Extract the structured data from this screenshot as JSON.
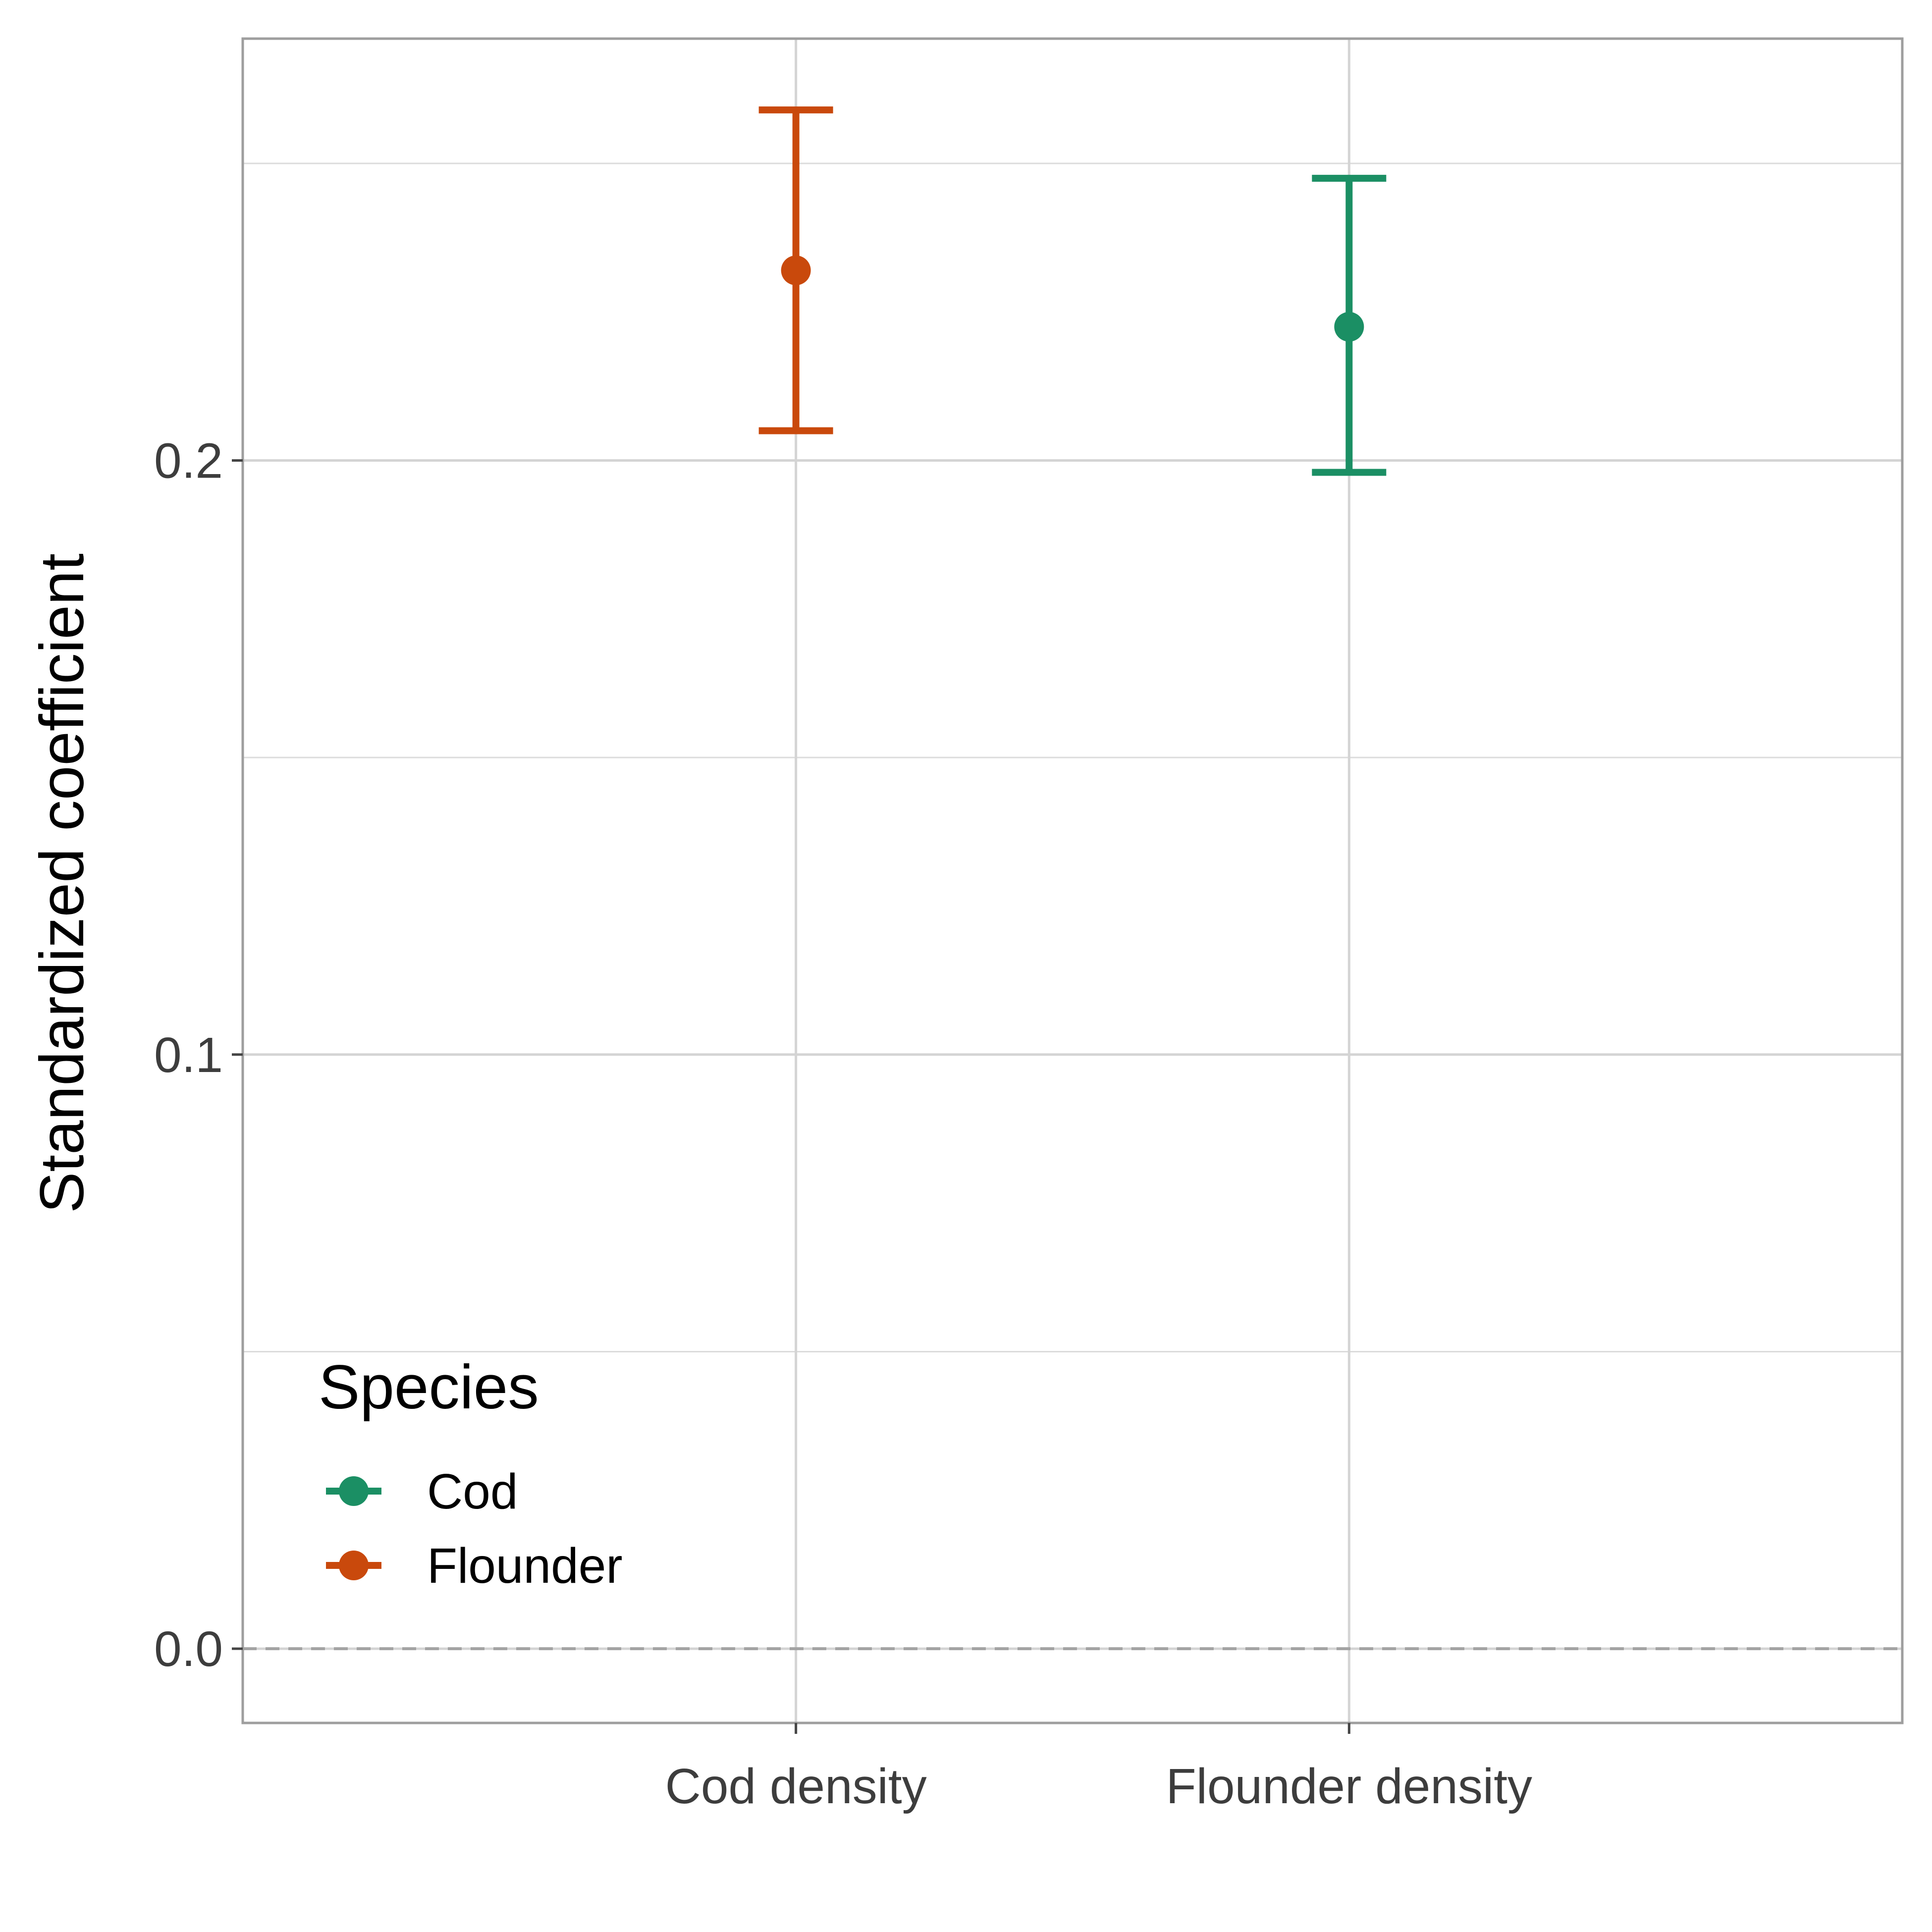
{
  "chart_data": {
    "type": "errorbar",
    "xlabel": "",
    "ylabel": "Standardized coefficient",
    "categories": [
      "Cod density",
      "Flounder density"
    ],
    "ylim": [
      -0.0125,
      0.271
    ],
    "yticks": [
      0.0,
      0.1,
      0.2
    ],
    "ytick_labels": [
      "0.0",
      "0.1",
      "0.2"
    ],
    "grid": true,
    "reference_line": {
      "y": 0,
      "style": "dashed"
    },
    "legend": {
      "title": "Species",
      "placement": "bottom-left",
      "entries": [
        {
          "label": "Cod",
          "color": "#1b8f64"
        },
        {
          "label": "Flounder",
          "color": "#c9490c"
        }
      ]
    },
    "series": [
      {
        "name": "Flounder",
        "color": "#c9490c",
        "category": "Cod density",
        "estimate": 0.232,
        "lower": 0.205,
        "upper": 0.259
      },
      {
        "name": "Cod",
        "color": "#1b8f64",
        "category": "Flounder density",
        "estimate": 0.2225,
        "lower": 0.198,
        "upper": 0.2475
      }
    ]
  }
}
